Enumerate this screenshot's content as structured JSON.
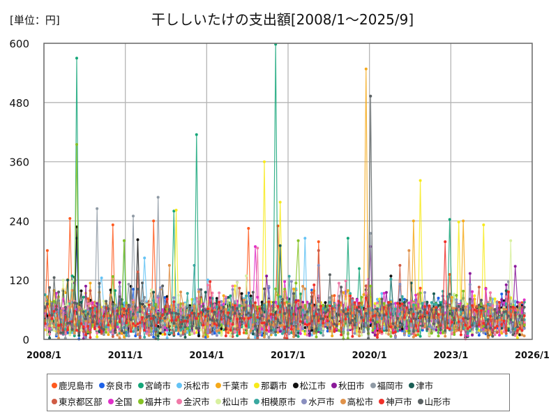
{
  "unit_label": "[単位：円]",
  "title": "干ししいたけの支出額[2008/1～2025/9]",
  "chart_data": {
    "type": "line",
    "title": "干ししいたけの支出額[2008/1～2025/9]",
    "ylabel": "[単位：円]",
    "xlabel": "",
    "ylim": [
      0,
      600
    ],
    "yticks": [
      "0",
      "120",
      "240",
      "360",
      "480",
      "600"
    ],
    "xticks": [
      "2008/1",
      "2011/1",
      "2014/1",
      "2017/1",
      "2020/1",
      "2023/1",
      "2026/1"
    ],
    "x_range": [
      "2008/1",
      "2026/1"
    ],
    "grid": true,
    "legend_position": "bottom",
    "series": [
      {
        "name": "鹿児島市",
        "color": "#ff5a1f",
        "peaks": [
          [
            "2008/2",
            180
          ],
          [
            "2008/12",
            245
          ],
          [
            "2010/7",
            232
          ],
          [
            "2012/1",
            240
          ],
          [
            "2015/7",
            225
          ],
          [
            "2016/8",
            230
          ],
          [
            "2018/2",
            198
          ]
        ]
      },
      {
        "name": "奈良市",
        "color": "#1e62e8",
        "peaks": [
          [
            "2009/3",
            205
          ]
        ]
      },
      {
        "name": "宮崎市",
        "color": "#15a679",
        "peaks": [
          [
            "2009/3",
            570
          ],
          [
            "2013/8",
            415
          ],
          [
            "2016/7",
            598
          ],
          [
            "2010/12",
            200
          ],
          [
            "2019/3",
            205
          ],
          [
            "2022/12",
            243
          ],
          [
            "2012/10",
            260
          ]
        ]
      },
      {
        "name": "浜松市",
        "color": "#64c3f5",
        "peaks": [
          [
            "2011/9",
            165
          ],
          [
            "2017/8",
            205
          ]
        ]
      },
      {
        "name": "千葉市",
        "color": "#f5a91a",
        "peaks": [
          [
            "2019/11",
            548
          ],
          [
            "2021/8",
            240
          ],
          [
            "2023/6",
            240
          ]
        ]
      },
      {
        "name": "那覇市",
        "color": "#f7ea1a",
        "peaks": [
          [
            "2016/2",
            360
          ],
          [
            "2016/9",
            278
          ],
          [
            "2012/11",
            262
          ],
          [
            "2021/11",
            322
          ],
          [
            "2023/4",
            238
          ],
          [
            "2024/3",
            232
          ]
        ]
      },
      {
        "name": "松江市",
        "color": "#111111",
        "peaks": [
          [
            "2009/3",
            228
          ],
          [
            "2011/6",
            202
          ]
        ]
      },
      {
        "name": "秋田市",
        "color": "#8b1a9a",
        "peaks": [
          [
            "2020/1",
            188
          ],
          [
            "2025/5",
            148
          ]
        ]
      },
      {
        "name": "福岡市",
        "color": "#8f9aa5",
        "peaks": [
          [
            "2009/12",
            265
          ],
          [
            "2012/3",
            288
          ],
          [
            "2011/4",
            250
          ],
          [
            "2020/1",
            215
          ]
        ]
      },
      {
        "name": "津市",
        "color": "#1a5e55",
        "peaks": [
          [
            "2016/9",
            190
          ]
        ]
      },
      {
        "name": "東京都区部",
        "color": "#d05c45",
        "peaks": [
          [
            "2018/2",
            180
          ]
        ]
      },
      {
        "name": "全国",
        "color": "#e030c8",
        "peaks": [
          [
            "2015/10",
            188
          ]
        ]
      },
      {
        "name": "福井市",
        "color": "#86c225",
        "peaks": [
          [
            "2009/3",
            395
          ],
          [
            "2010/12",
            200
          ],
          [
            "2017/5",
            200
          ]
        ]
      },
      {
        "name": "金沢市",
        "color": "#f07aa8",
        "peaks": [
          [
            "2015/11",
            185
          ]
        ]
      },
      {
        "name": "松山市",
        "color": "#d8f0a0",
        "peaks": [
          [
            "2025/3",
            200
          ]
        ]
      },
      {
        "name": "相模原市",
        "color": "#3aa8a0",
        "peaks": [
          [
            "2013/7",
            150
          ]
        ]
      },
      {
        "name": "水戸市",
        "color": "#8a8fbf",
        "peaks": [
          [
            "2018/2",
            150
          ]
        ]
      },
      {
        "name": "高松市",
        "color": "#e0924a",
        "peaks": [
          [
            "2012/8",
            150
          ],
          [
            "2021/6",
            180
          ]
        ]
      },
      {
        "name": "神戸市",
        "color": "#f0302a",
        "peaks": [
          [
            "2022/10",
            198
          ]
        ]
      },
      {
        "name": "山形市",
        "color": "#5a6163",
        "peaks": [
          [
            "2020/1",
            493
          ]
        ]
      }
    ],
    "typical_range": [
      0,
      120
    ],
    "points_per_series": 213
  },
  "legend": {
    "row1": [
      {
        "label": "鹿児島市",
        "color": "#ff5a1f"
      },
      {
        "label": "奈良市",
        "color": "#1e62e8"
      },
      {
        "label": "宮崎市",
        "color": "#15a679"
      },
      {
        "label": "浜松市",
        "color": "#64c3f5"
      },
      {
        "label": "千葉市",
        "color": "#f5a91a"
      },
      {
        "label": "那覇市",
        "color": "#f7ea1a"
      },
      {
        "label": "松江市",
        "color": "#111111"
      },
      {
        "label": "秋田市",
        "color": "#8b1a9a"
      },
      {
        "label": "福岡市",
        "color": "#8f9aa5"
      },
      {
        "label": "津市",
        "color": "#1a5e55"
      }
    ],
    "row2": [
      {
        "label": "東京都区部",
        "color": "#d05c45"
      },
      {
        "label": "全国",
        "color": "#e030c8"
      },
      {
        "label": "福井市",
        "color": "#86c225"
      },
      {
        "label": "金沢市",
        "color": "#f07aa8"
      },
      {
        "label": "松山市",
        "color": "#d8f0a0"
      },
      {
        "label": "相模原市",
        "color": "#3aa8a0"
      },
      {
        "label": "水戸市",
        "color": "#8a8fbf"
      },
      {
        "label": "高松市",
        "color": "#e0924a"
      },
      {
        "label": "神戸市",
        "color": "#f0302a"
      },
      {
        "label": "山形市",
        "color": "#5a6163"
      }
    ]
  }
}
